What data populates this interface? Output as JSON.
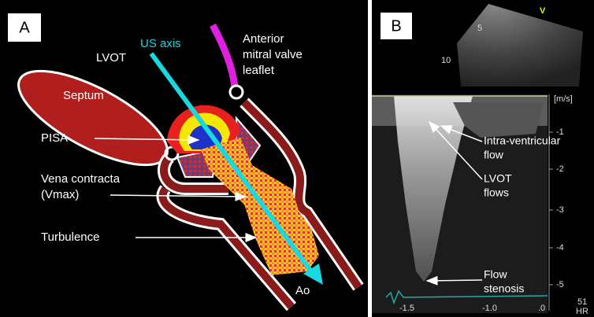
{
  "panel_a": {
    "label": "A",
    "septum": "Septum",
    "lvot": "LVOT",
    "us_axis": "US axis",
    "anterior_leaflet": [
      "Anterior",
      "mitral valve",
      "leaflet"
    ],
    "pisa": "PISA",
    "vena_contracta": [
      "Vena contracta",
      "(Vmax)"
    ],
    "turbulence": "Turbulence",
    "aorta": "Ao"
  },
  "panel_b": {
    "label": "B",
    "sector_marker": "V",
    "sector_depths": [
      "5",
      "10"
    ],
    "velocity_unit": "[m/s]",
    "velocity_ticks": [
      "-1",
      "-2",
      "-3",
      "-4",
      "-5"
    ],
    "time_ticks": [
      "-1.5",
      "-1.0",
      ".0"
    ],
    "heart_rate": [
      "51",
      "HR"
    ],
    "intra_ventricular_flow": [
      "Intra-ventricular",
      "flow"
    ],
    "lvot_flows": [
      "LVOT",
      "flows"
    ],
    "flow_stenosis": [
      "Flow",
      "stenosis"
    ]
  }
}
